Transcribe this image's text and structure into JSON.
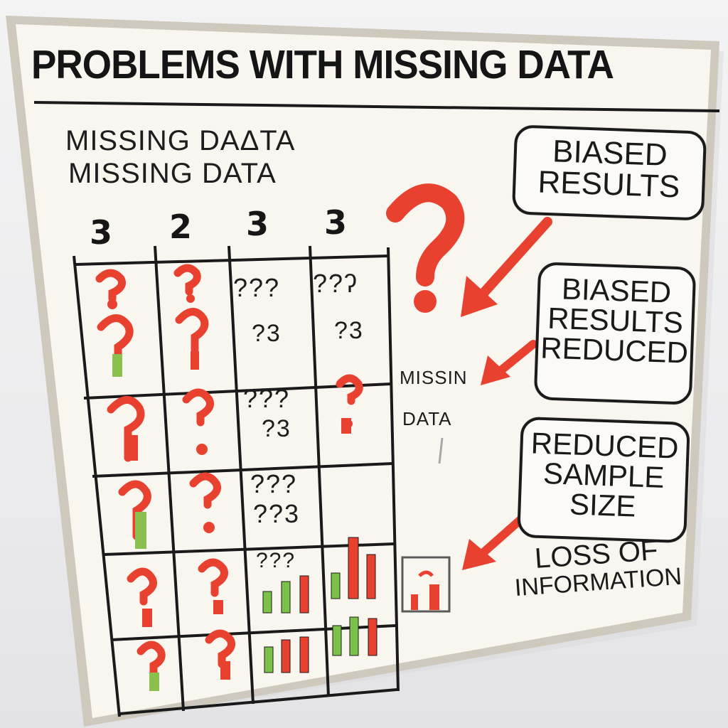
{
  "title": "PROBLEMS WITH MISSING DATA",
  "subtitle_lines": [
    "MISSING DAΔTA",
    "MISSING DATA"
  ],
  "column_headers": [
    "3",
    "2",
    "3",
    "3"
  ],
  "side_label_lines": [
    "MISSIN",
    "DATA"
  ],
  "callouts": [
    {
      "lines": [
        "BIASED",
        "RESULTS"
      ]
    },
    {
      "lines": [
        "BIASED",
        "RESULTS",
        "REDUCED"
      ]
    },
    {
      "lines": [
        "REDUCED",
        "SAMPLE",
        "SIZE"
      ]
    }
  ],
  "loss_label_lines": [
    "LOSS OF",
    "INFORMATION"
  ],
  "grid_text": {
    "r0c2": "???",
    "r0c3": "??ʔ",
    "r0c2b": "?3",
    "r0c3b": "?3",
    "r1c2": "???",
    "r1c2b": "?3",
    "r2c2": "???",
    "r2c2b": "??3",
    "r3c2": "???"
  },
  "colors": {
    "red": "#e8412f",
    "green": "#7cc24a",
    "ink": "#1a1a1a",
    "board": "#f8f6ef"
  }
}
